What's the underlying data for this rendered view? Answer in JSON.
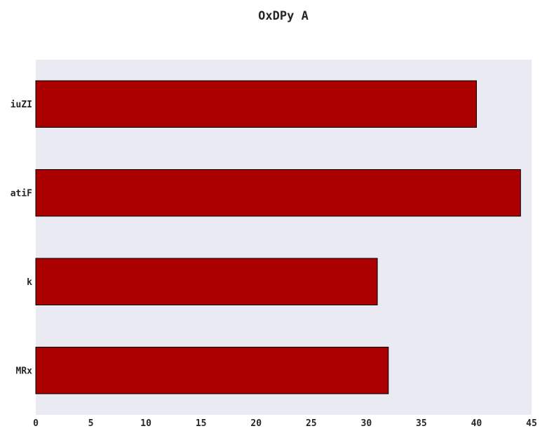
{
  "chart_data": {
    "type": "bar",
    "orientation": "horizontal",
    "title": "OxDPy  A",
    "xlabel": "",
    "ylabel": "",
    "categories": [
      "iuZI",
      "atiF",
      "k",
      "MRx"
    ],
    "values": [
      40,
      44,
      31,
      32
    ],
    "xlim": [
      0,
      45
    ],
    "xticks": [
      0,
      5,
      10,
      15,
      20,
      25,
      30,
      35,
      40,
      45
    ],
    "grid": false,
    "legend": "none",
    "colors": {
      "bar": "#aa0000",
      "bar_edge": "#000000",
      "plot_background": "#eaeaf2",
      "text": "#262626"
    }
  }
}
